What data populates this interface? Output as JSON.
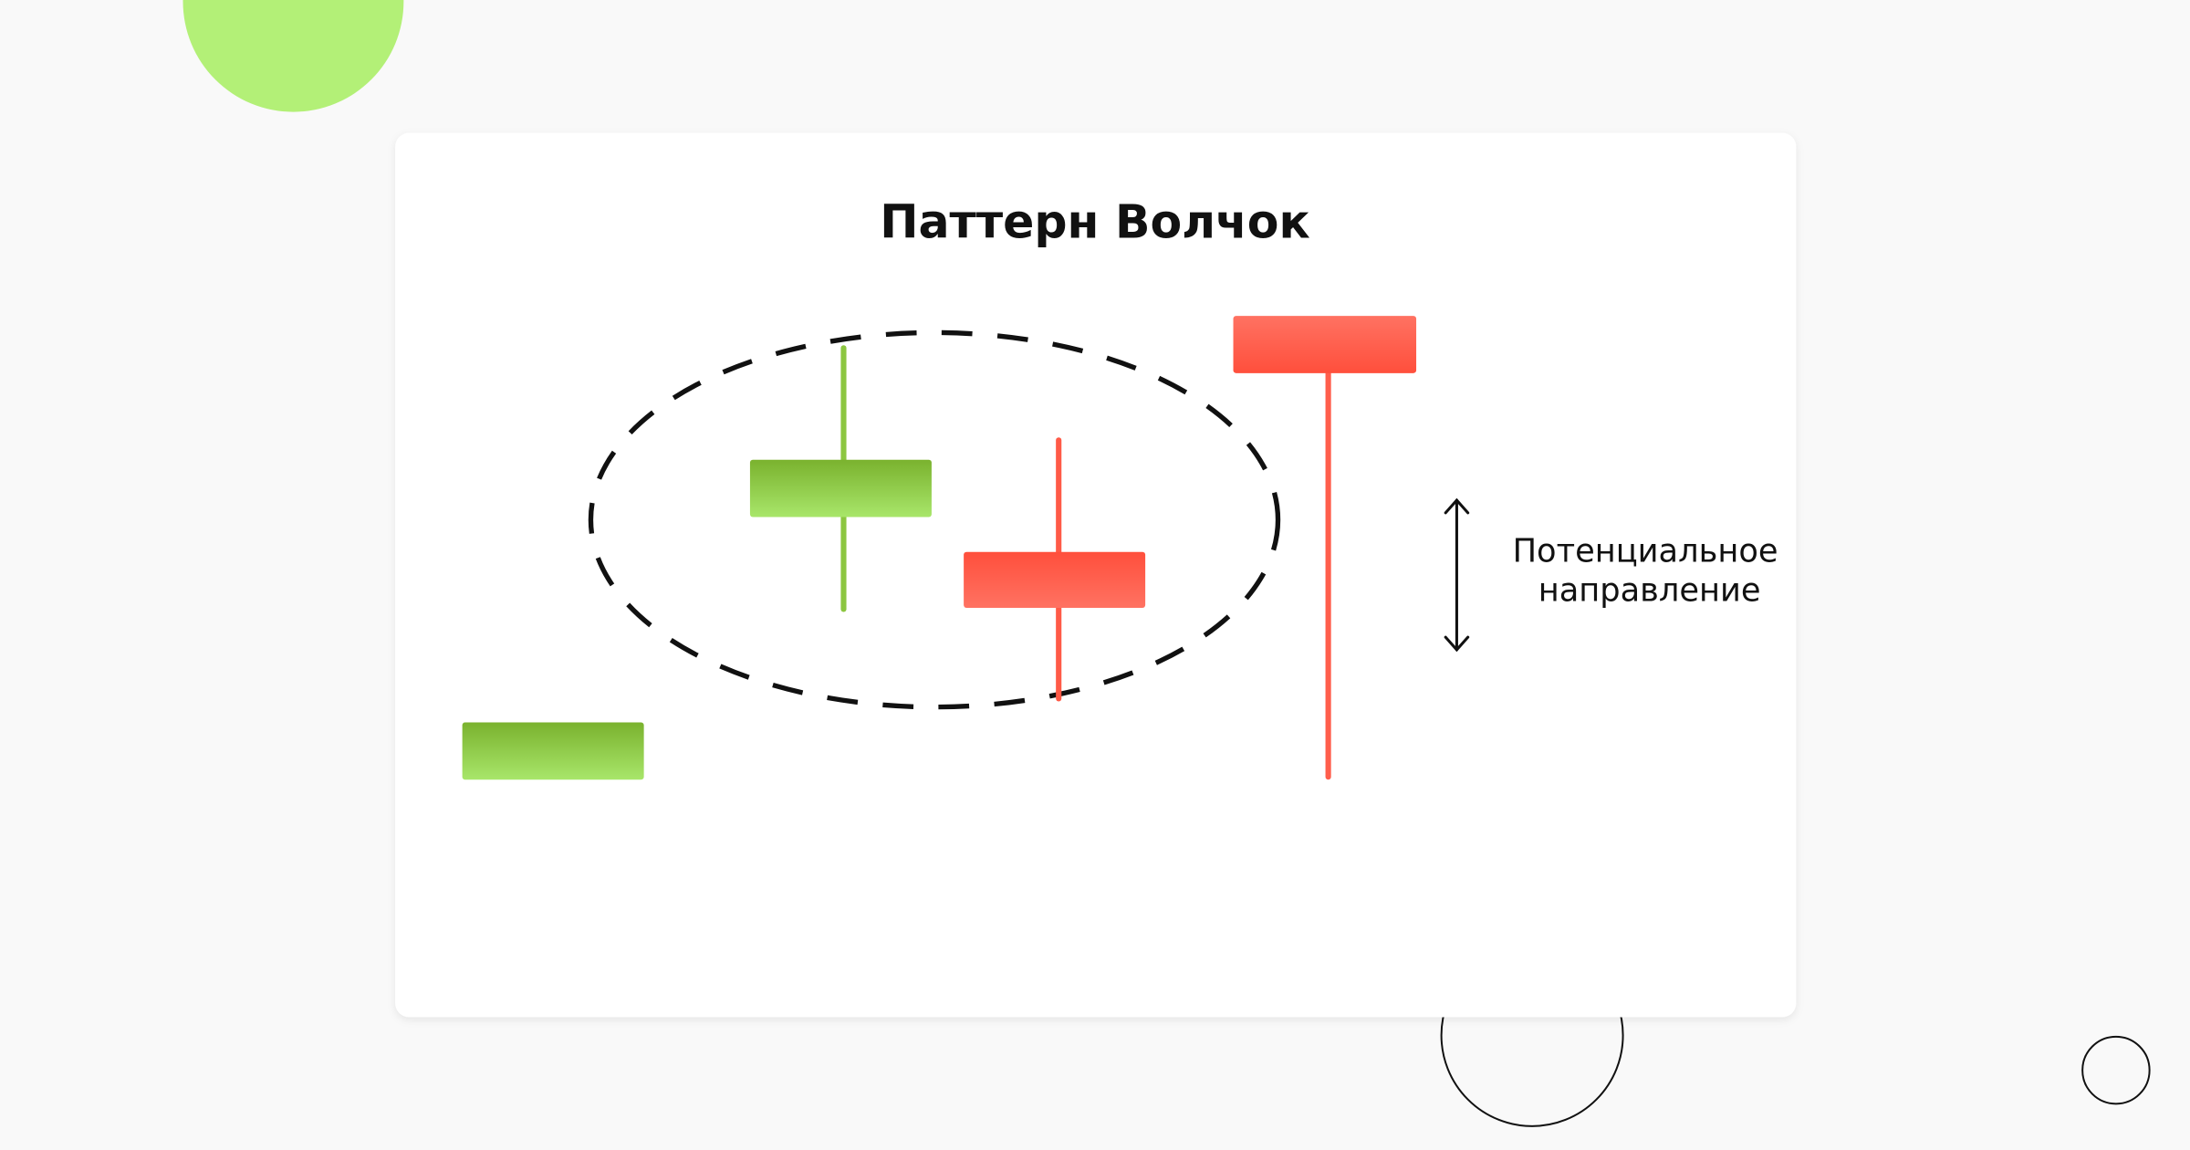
{
  "title": "Паттерн Волчок",
  "annotation": {
    "line1": "Потенциальное",
    "line2": "направление",
    "icon": "double-arrow-vertical-icon"
  },
  "colors": {
    "background": "#f9f9f9",
    "card": "#ffffff",
    "bullish_top": "#7ab22e",
    "bullish_bottom": "#a8e66a",
    "bearish_dark": "#ff4f3c",
    "bearish_light": "#ff7060",
    "accent_circle": "#b3f077",
    "outline": "#111111"
  },
  "candles": [
    {
      "type": "bullish"
    },
    {
      "type": "bullish"
    },
    {
      "type": "bearish"
    },
    {
      "type": "bearish"
    }
  ]
}
